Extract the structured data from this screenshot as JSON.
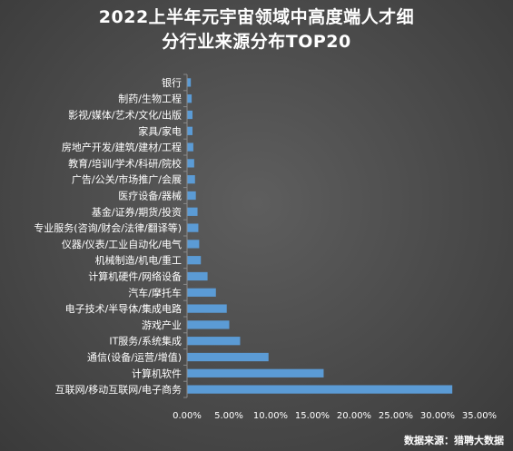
{
  "title_line1": "2022上半年元宇宙领域中高度端人才细",
  "title_line2": "分行业来源分布TOP20",
  "source": "数据来源：猎聘大数据",
  "colors": {
    "bar": "#5b9bd5",
    "text": "#ffffff",
    "background": "#4a4a4a"
  },
  "chart_data": {
    "type": "bar",
    "orientation": "horizontal",
    "title": "2022上半年元宇宙领域中高度端人才细分行业来源分布TOP20",
    "xlabel": "",
    "ylabel": "",
    "xlim": [
      0,
      0.35
    ],
    "grid": false,
    "legend": "none",
    "x_ticks": [
      "0.00%",
      "5.00%",
      "10.00%",
      "15.00%",
      "20.00%",
      "25.00%",
      "30.00%",
      "35.00%"
    ],
    "categories": [
      "银行",
      "制药/生物工程",
      "影视/媒体/艺术/文化/出版",
      "家具/家电",
      "房地产开发/建筑/建材/工程",
      "教育/培训/学术/科研/院校",
      "广告/公关/市场推广/会展",
      "医疗设备/器械",
      "基金/证券/期货/投资",
      "专业服务(咨询/财会/法律/翻译等)",
      "仪器/仪表/工业自动化/电气",
      "机械制造/机电/重工",
      "计算机硬件/网络设备",
      "汽车/摩托车",
      "电子技术/半导体/集成电路",
      "游戏产业",
      "IT服务/系统集成",
      "通信(设备/运营/增值)",
      "计算机软件",
      "互联网/移动互联网/电子商务"
    ],
    "values": [
      0.004,
      0.005,
      0.006,
      0.006,
      0.007,
      0.008,
      0.009,
      0.01,
      0.012,
      0.013,
      0.014,
      0.016,
      0.024,
      0.034,
      0.047,
      0.05,
      0.063,
      0.097,
      0.163,
      0.317
    ]
  }
}
